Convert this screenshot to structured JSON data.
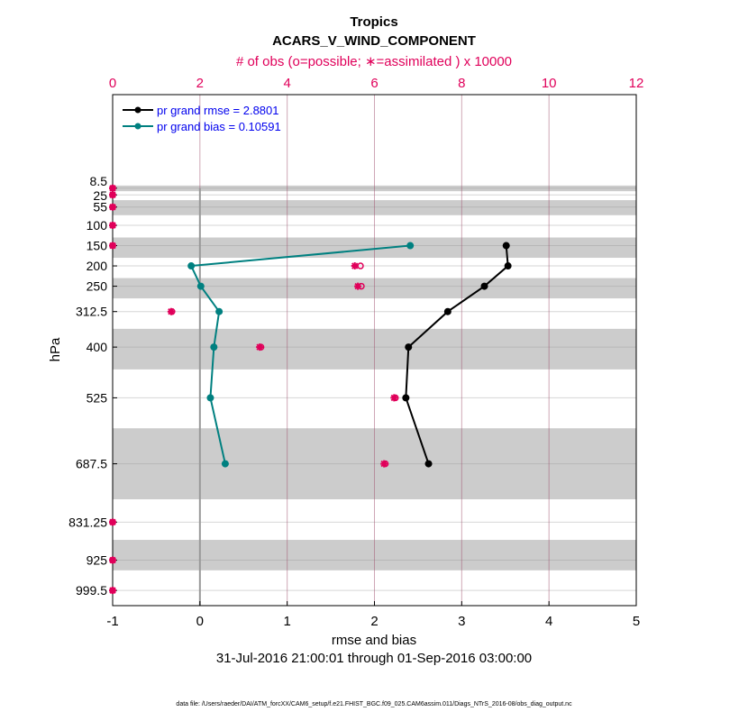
{
  "chart_data": {
    "type": "line",
    "title": "Tropics",
    "subtitle": "ACARS_V_WIND_COMPONENT",
    "top_axis_label": "# of obs (o=possible; ∗=assimilated ) x 10000",
    "xlabel": "rmse and bias",
    "xlabel2": "31-Jul-2016 21:00:01 through 01-Sep-2016 03:00:00",
    "ylabel": "hPa",
    "footer": "data file: /Users/raeder/DAI/ATM_forcXX/CAM6_setup/f.e21.FHIST_BGC.f09_025.CAM6assim.011/Diags_NTrS_2016-08/obs_diag_output.nc",
    "xlim": [
      -1,
      5
    ],
    "xticks": [
      -1,
      0,
      1,
      2,
      3,
      4,
      5
    ],
    "top_xlim": [
      0,
      12
    ],
    "top_xticks": [
      0,
      2,
      4,
      6,
      8,
      10,
      12
    ],
    "ylim": [
      -222,
      1037
    ],
    "levels": [
      8.5,
      25,
      55,
      100,
      150,
      200,
      250,
      312.5,
      400,
      525,
      687.5,
      831.25,
      925,
      999.5
    ],
    "level_labels": [
      "8.5",
      "25",
      "55",
      "100",
      "150",
      "200",
      "250",
      "312.5",
      "400",
      "525",
      "687.5",
      "831.25",
      "925",
      "999.5"
    ],
    "shaded_layers": [
      [
        2,
        16
      ],
      [
        38,
        75
      ],
      [
        130,
        180
      ],
      [
        230,
        280
      ],
      [
        355,
        455
      ],
      [
        600,
        775
      ],
      [
        875,
        950
      ]
    ],
    "series": [
      {
        "name": "pr grand rmse = 2.8801",
        "color": "#000000",
        "levels": [
          150,
          200,
          250,
          312.5,
          400,
          525,
          687.5
        ],
        "values": [
          3.51,
          3.53,
          3.26,
          2.84,
          2.39,
          2.36,
          2.62
        ]
      },
      {
        "name": "pr grand bias = 0.10591",
        "color": "#008080",
        "levels": [
          150,
          200,
          250,
          312.5,
          400,
          525,
          687.5
        ],
        "values": [
          2.41,
          -0.1,
          0.01,
          0.22,
          0.16,
          0.12,
          0.29
        ]
      }
    ],
    "obs": {
      "color": "#e0005a",
      "levels": [
        8.5,
        25,
        55,
        100,
        150,
        200,
        250,
        312.5,
        400,
        525,
        687.5,
        831.25,
        925,
        999.5
      ],
      "possible": [
        0,
        0,
        0,
        0,
        0,
        5.68,
        5.7,
        1.36,
        3.4,
        6.48,
        6.25,
        0,
        0,
        0
      ],
      "assimilated": [
        0,
        0,
        0,
        0,
        0,
        5.55,
        5.62,
        1.34,
        3.37,
        6.45,
        6.22,
        0,
        0,
        0
      ]
    },
    "legend_position": "top-left"
  }
}
